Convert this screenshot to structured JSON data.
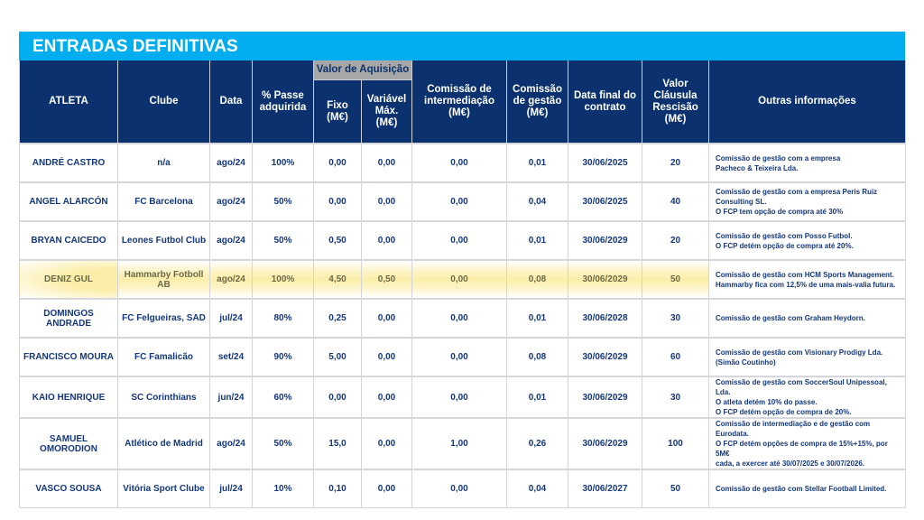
{
  "title": "ENTRADAS DEFINITIVAS",
  "headers": {
    "atleta": "ATLETA",
    "clube": "Clube",
    "data": "Data",
    "passe": "% Passe adquirida",
    "group": "Valor de Aquisição",
    "fixo": "Fixo (M€)",
    "variavel": "Variável Máx. (M€)",
    "intermediacao": "Comissão de intermediação (M€)",
    "gestao": "Comissão de gestão (M€)",
    "data_final": "Data final do contrato",
    "clausula": "Valor Cláusula Rescisão (M€)",
    "outras": "Outras informações"
  },
  "rows": [
    {
      "atleta": "ANDRÉ CASTRO",
      "clube": "n/a",
      "data": "ago/24",
      "passe": "100%",
      "fixo": "0,00",
      "variavel": "0,00",
      "intermediacao": "0,00",
      "gestao": "0,01",
      "data_final": "30/06/2025",
      "clausula": "20",
      "info": [
        "Comissão de gestão com a empresa",
        "Pacheco & Teixeira Lda."
      ]
    },
    {
      "atleta": "ANGEL ALARCÓN",
      "clube": "FC Barcelona",
      "data": "ago/24",
      "passe": "50%",
      "fixo": "0,00",
      "variavel": "0,00",
      "intermediacao": "0,00",
      "gestao": "0,04",
      "data_final": "30/06/2025",
      "clausula": "40",
      "info": [
        "Comissão de gestão com a empresa Peris Ruiz",
        "Consulting SL.",
        "O FCP tem opção de compra até 30%"
      ]
    },
    {
      "atleta": "BRYAN CAICEDO",
      "clube": "Leones Futbol Club",
      "data": "ago/24",
      "passe": "50%",
      "fixo": "0,50",
      "variavel": "0,00",
      "intermediacao": "0,00",
      "gestao": "0,01",
      "data_final": "30/06/2029",
      "clausula": "20",
      "info": [
        "Comissão de gestão com Posso Futbol.",
        "O FCP detém opção de compra até 20%."
      ]
    },
    {
      "atleta": "DENIZ GUL",
      "clube": "Hammarby Fotboll AB",
      "data": "ago/24",
      "passe": "100%",
      "fixo": "4,50",
      "variavel": "0,50",
      "intermediacao": "0,00",
      "gestao": "0,08",
      "data_final": "30/06/2029",
      "clausula": "50",
      "info": [
        "Comissão de gestão com HCM Sports Management.",
        "Hammarby fica com 12,5% de uma mais-valia futura."
      ],
      "highlighted": true
    },
    {
      "atleta": "DOMINGOS ANDRADE",
      "clube": "FC Felgueiras, SAD",
      "data": "jul/24",
      "passe": "80%",
      "fixo": "0,25",
      "variavel": "0,00",
      "intermediacao": "0,00",
      "gestao": "0,01",
      "data_final": "30/06/2028",
      "clausula": "30",
      "info": [
        "Comissão de gestão com Graham Heydorn."
      ]
    },
    {
      "atleta": "FRANCISCO MOURA",
      "clube": "FC Famalicão",
      "data": "set/24",
      "passe": "90%",
      "fixo": "5,00",
      "variavel": "0,00",
      "intermediacao": "0,00",
      "gestao": "0,08",
      "data_final": "30/06/2029",
      "clausula": "60",
      "info": [
        "Comissão de gestão com Visionary Prodigy Lda.",
        "(Simão Coutinho)"
      ]
    },
    {
      "atleta": "KAIO HENRIQUE",
      "clube": "SC Corinthians",
      "data": "jun/24",
      "passe": "60%",
      "fixo": "0,00",
      "variavel": "0,00",
      "intermediacao": "0,00",
      "gestao": "0,01",
      "data_final": "30/06/2029",
      "clausula": "30",
      "info": [
        "Comissão de gestão com SoccerSoul Unipessoal, Lda.",
        "O atleta detém 10% do passe.",
        "O FCP detém opção de compra de 20%."
      ]
    },
    {
      "atleta": "SAMUEL OMORODION",
      "clube": "Atlético de Madrid",
      "data": "ago/24",
      "passe": "50%",
      "fixo": "15,0",
      "variavel": "0,00",
      "intermediacao": "1,00",
      "gestao": "0,26",
      "data_final": "30/06/2029",
      "clausula": "100",
      "info": [
        "Comissão de intermediação e de gestão com Eurodata.",
        "O FCP detém opções de compra de 15%+15%, por 5M€",
        "cada, a exercer até 30/07/2025 e 30/07/2026."
      ]
    },
    {
      "atleta": "VASCO SOUSA",
      "clube": "Vitória Sport Clube",
      "data": "jul/24",
      "passe": "10%",
      "fixo": "0,10",
      "variavel": "0,00",
      "intermediacao": "0,00",
      "gestao": "0,04",
      "data_final": "30/06/2027",
      "clausula": "50",
      "info": [
        "Comissão de gestão com Stellar Football Limited."
      ]
    }
  ]
}
